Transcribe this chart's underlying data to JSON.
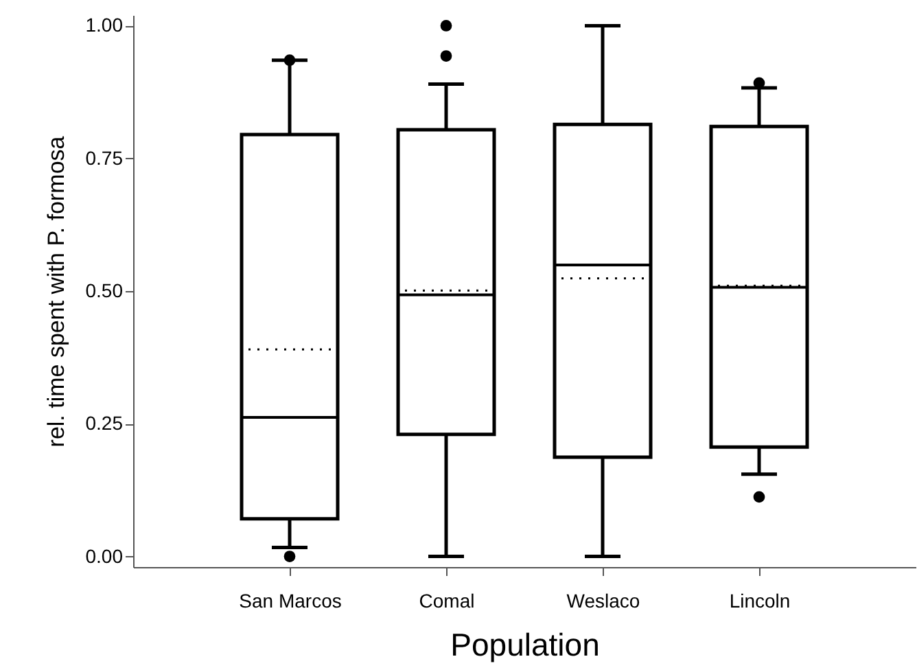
{
  "chart_data": {
    "type": "box",
    "xlabel": "Population",
    "ylabel": "rel. time spent with P. formosa",
    "categories": [
      "San Marcos",
      "Comal",
      "Weslaco",
      "Lincoln"
    ],
    "boxes": [
      {
        "low": 0.017,
        "q1": 0.071,
        "median": 0.262,
        "q3": 0.795,
        "high": 0.935,
        "mean": 0.39,
        "outliers": [
          0.935,
          0.0
        ]
      },
      {
        "low": 0.0,
        "q1": 0.23,
        "median": 0.493,
        "q3": 0.804,
        "high": 0.89,
        "mean": 0.501,
        "outliers": [
          1.0,
          0.943
        ]
      },
      {
        "low": 0.0,
        "q1": 0.187,
        "median": 0.549,
        "q3": 0.814,
        "high": 1.0,
        "mean": 0.524
      },
      {
        "low": 0.155,
        "q1": 0.206,
        "median": 0.507,
        "q3": 0.81,
        "high": 0.883,
        "mean": 0.51,
        "outliers": [
          0.892,
          0.112
        ]
      }
    ],
    "ylim": [
      -0.02,
      1.02
    ],
    "grid": false,
    "yticks": [
      {
        "value": 0,
        "label": "0.00"
      },
      {
        "value": 0.25,
        "label": "0.25"
      },
      {
        "value": 0.5,
        "label": "0.50"
      },
      {
        "value": 0.75,
        "label": "0.75"
      },
      {
        "value": 1,
        "label": "1.00"
      }
    ]
  }
}
